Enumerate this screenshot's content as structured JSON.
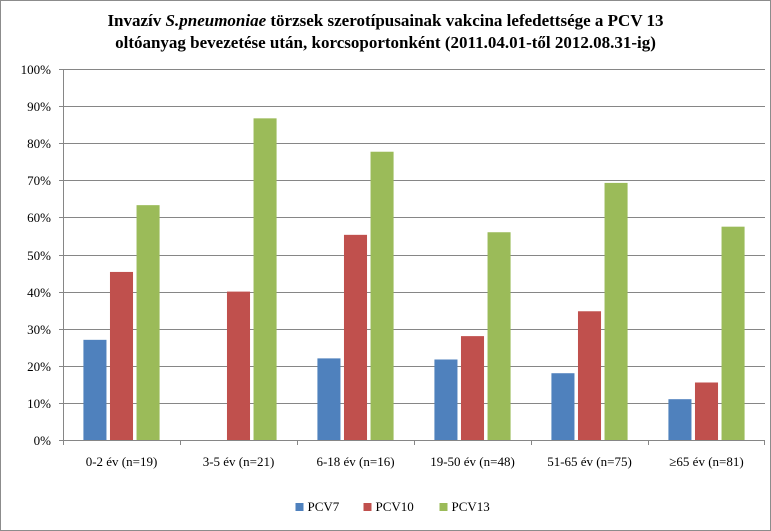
{
  "chart_data": {
    "type": "bar",
    "title": {
      "line1_prefix": "Invazív ",
      "line1_italic": "S.pneumoniae",
      "line1_suffix": " törzsek szerotípusainak vakcina lefedettsége a PCV 13",
      "line2": "oltóanyag bevezetése után, korcsoportonként (2011.04.01-től 2012.08.31-ig)"
    },
    "categories": [
      "0-2 év (n=19)",
      "3-5 év (n=21)",
      "6-18 év (n=16)",
      "19-50 év (n=48)",
      "51-65 év (n=75)",
      "≥65 év (n=81)"
    ],
    "series": [
      {
        "name": "PCV7",
        "color": "#4f81bd",
        "values": [
          0.27,
          0.0,
          0.22,
          0.217,
          0.18,
          0.11
        ]
      },
      {
        "name": "PCV10",
        "color": "#c0504d",
        "values": [
          0.453,
          0.4,
          0.553,
          0.28,
          0.347,
          0.155
        ]
      },
      {
        "name": "PCV13",
        "color": "#9bbb59",
        "values": [
          0.633,
          0.867,
          0.777,
          0.56,
          0.693,
          0.575
        ]
      }
    ],
    "y_ticks": [
      "0%",
      "10%",
      "20%",
      "30%",
      "40%",
      "50%",
      "60%",
      "70%",
      "80%",
      "90%",
      "100%"
    ],
    "ylim": [
      0,
      1
    ],
    "legend_position": "bottom",
    "grid": true
  }
}
